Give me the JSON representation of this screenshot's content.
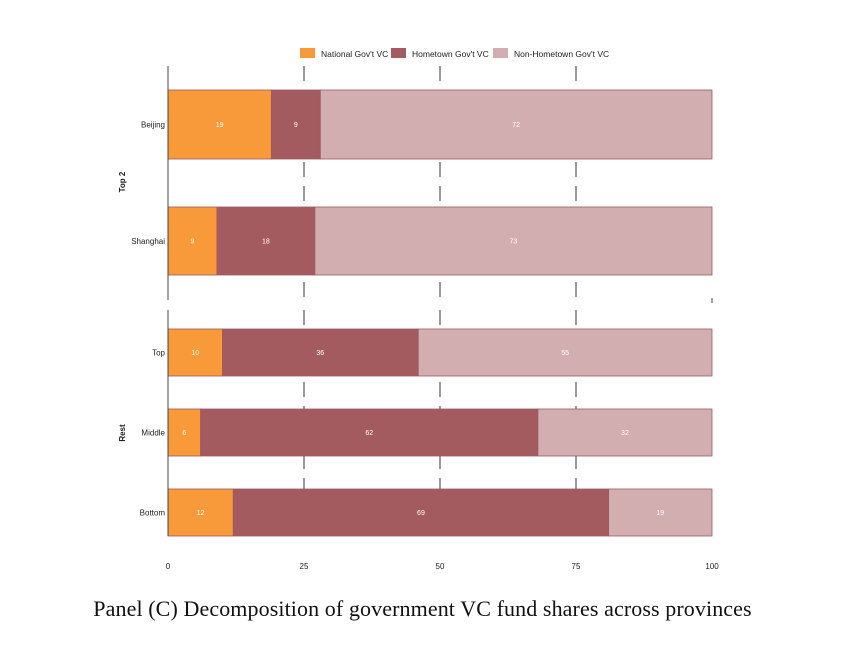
{
  "caption": "Panel (C) Decomposition of government VC fund shares across provinces",
  "chart_data": {
    "type": "bar",
    "orientation": "horizontal",
    "stacked": true,
    "xlim": [
      0,
      100
    ],
    "xticks": [
      "0",
      "25",
      "50",
      "75",
      "100"
    ],
    "legend_position": "top",
    "series": [
      {
        "name": "National Gov't VC",
        "color": "#F99A3A"
      },
      {
        "name": "Hometown Gov't VC",
        "color": "#A35B60"
      },
      {
        "name": "Non-Hometown Gov't VC",
        "color": "#D2AEB0"
      }
    ],
    "groups": [
      {
        "label": "Top 2",
        "rows": [
          {
            "category": "Beijing",
            "values": [
              19,
              9,
              72
            ],
            "labels": [
              "19",
              "9",
              "72"
            ]
          },
          {
            "category": "Shanghai",
            "values": [
              9,
              18,
              73
            ],
            "labels": [
              "9",
              "18",
              "73"
            ]
          }
        ]
      },
      {
        "label": "Rest",
        "rows": [
          {
            "category": "Top",
            "values": [
              10,
              36,
              55
            ],
            "labels": [
              "10",
              "36",
              "55"
            ]
          },
          {
            "category": "Middle",
            "values": [
              6,
              62,
              32
            ],
            "labels": [
              "6",
              "62",
              "32"
            ]
          },
          {
            "category": "Bottom",
            "values": [
              12,
              69,
              19
            ],
            "labels": [
              "12",
              "69",
              "19"
            ]
          }
        ]
      }
    ]
  }
}
